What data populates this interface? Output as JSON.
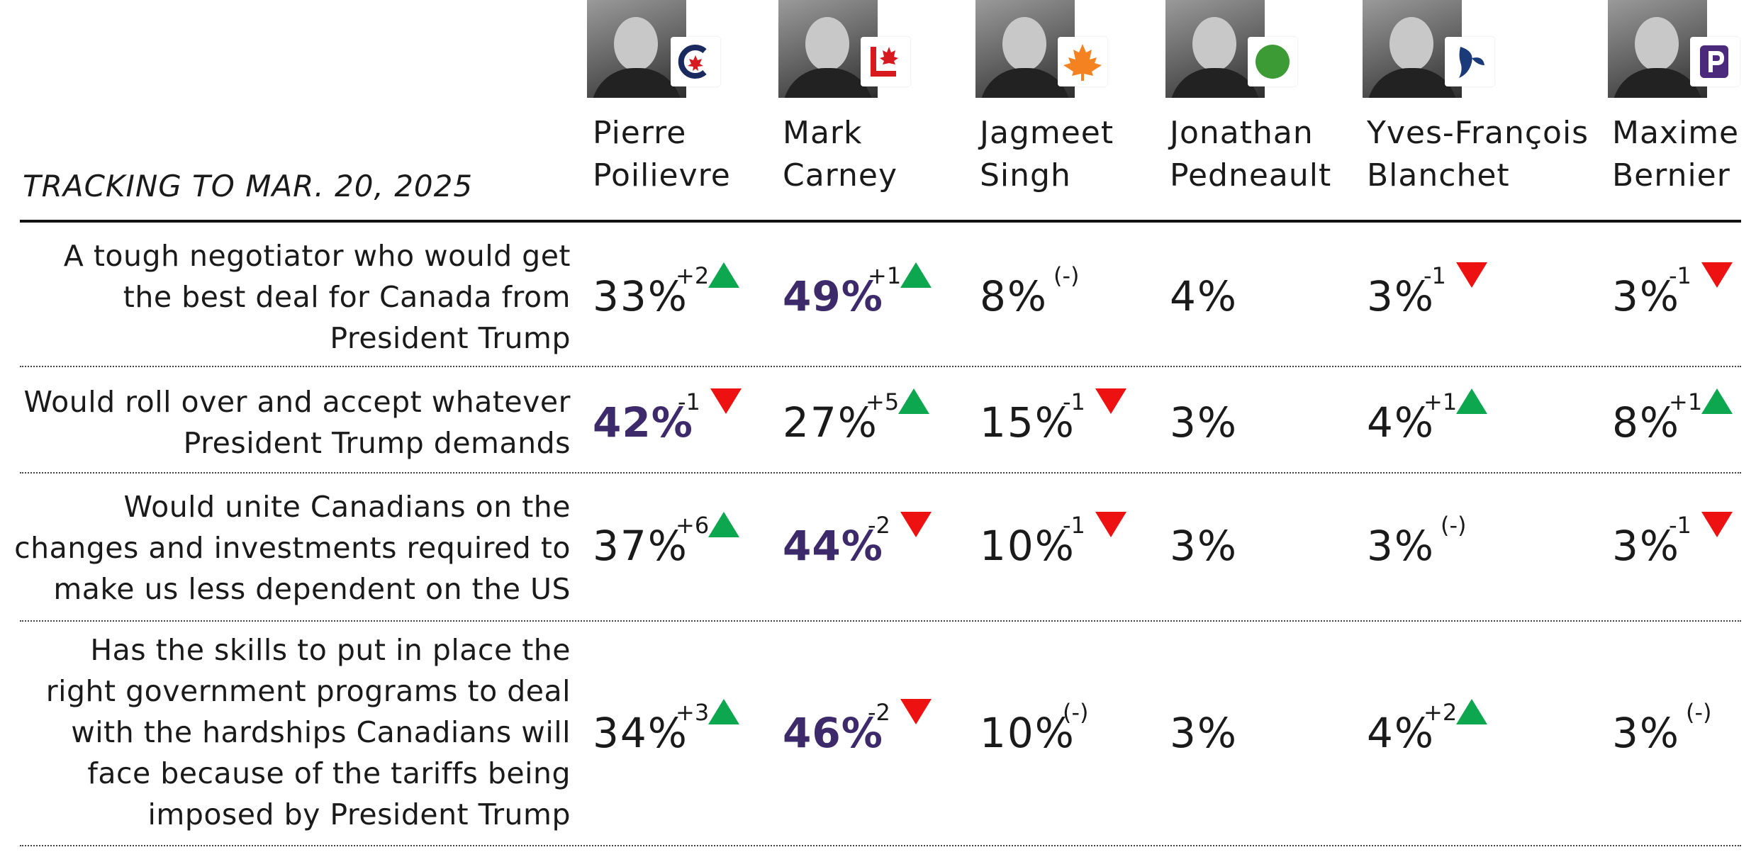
{
  "header": {
    "tracking_label": "TRACKING TO MAR. 20, 2025"
  },
  "colors": {
    "highlight": "#3d2a6b",
    "up": "#0da750",
    "down": "#ee1111",
    "cpc": "#1a2a5e",
    "lpc": "#d71920",
    "ndp": "#f58220",
    "gpc": "#3d9b35",
    "bq": "#1a3a7a",
    "ppc": "#4b2a7b"
  },
  "candidates": [
    {
      "first": "Pierre",
      "last": "Poilievre",
      "logo": "conservative-logo-icon"
    },
    {
      "first": "Mark",
      "last": "Carney",
      "logo": "liberal-logo-icon"
    },
    {
      "first": "Jagmeet",
      "last": "Singh",
      "logo": "ndp-logo-icon"
    },
    {
      "first": "Jonathan",
      "last": "Pedneault",
      "logo": "green-logo-icon"
    },
    {
      "first": "Yves-François",
      "last": "Blanchet",
      "logo": "bloc-logo-icon"
    },
    {
      "first": "Maxime",
      "last": "Bernier",
      "logo": "ppc-logo-icon"
    }
  ],
  "chart_data": {
    "type": "table",
    "title": "",
    "columns": [
      "Pierre Poilievre",
      "Mark Carney",
      "Jagmeet Singh",
      "Jonathan Pedneault",
      "Yves-François Blanchet",
      "Maxime Bernier"
    ],
    "rows": [
      {
        "label": "A tough negotiator who would get the best deal for Canada from President Trump",
        "cells": [
          {
            "value": "33%",
            "change": "+2",
            "dir": "up",
            "bold": false
          },
          {
            "value": "49%",
            "change": "+1",
            "dir": "up",
            "bold": true
          },
          {
            "value": "8%",
            "change": "(-)",
            "dir": "none",
            "bold": false
          },
          {
            "value": "4%",
            "change": "",
            "dir": "none",
            "bold": false
          },
          {
            "value": "3%",
            "change": "-1",
            "dir": "down",
            "bold": false
          },
          {
            "value": "3%",
            "change": "-1",
            "dir": "down",
            "bold": false
          }
        ]
      },
      {
        "label": "Would roll over and accept whatever President Trump demands",
        "cells": [
          {
            "value": "42%",
            "change": "-1",
            "dir": "down",
            "bold": true
          },
          {
            "value": "27%",
            "change": "+5",
            "dir": "up",
            "bold": false
          },
          {
            "value": "15%",
            "change": "-1",
            "dir": "down",
            "bold": false
          },
          {
            "value": "3%",
            "change": "",
            "dir": "none",
            "bold": false
          },
          {
            "value": "4%",
            "change": "+1",
            "dir": "up",
            "bold": false
          },
          {
            "value": "8%",
            "change": "+1",
            "dir": "up",
            "bold": false
          }
        ]
      },
      {
        "label": "Would unite Canadians on the changes and investments required to make us less dependent on the US",
        "cells": [
          {
            "value": "37%",
            "change": "+6",
            "dir": "up",
            "bold": false
          },
          {
            "value": "44%",
            "change": "-2",
            "dir": "down",
            "bold": true
          },
          {
            "value": "10%",
            "change": "-1",
            "dir": "down",
            "bold": false
          },
          {
            "value": "3%",
            "change": "",
            "dir": "none",
            "bold": false
          },
          {
            "value": "3%",
            "change": "(-)",
            "dir": "none",
            "bold": false
          },
          {
            "value": "3%",
            "change": "-1",
            "dir": "down",
            "bold": false
          }
        ]
      },
      {
        "label": "Has the skills to put in place the right government programs to deal with the hardships Canadians will face because of the tariffs being imposed by President Trump",
        "cells": [
          {
            "value": "34%",
            "change": "+3",
            "dir": "up",
            "bold": false
          },
          {
            "value": "46%",
            "change": "-2",
            "dir": "down",
            "bold": true
          },
          {
            "value": "10%",
            "change": "(-)",
            "dir": "none",
            "bold": false
          },
          {
            "value": "3%",
            "change": "",
            "dir": "none",
            "bold": false
          },
          {
            "value": "4%",
            "change": "+2",
            "dir": "up",
            "bold": false
          },
          {
            "value": "3%",
            "change": "(-)",
            "dir": "none",
            "bold": false
          }
        ]
      }
    ]
  }
}
